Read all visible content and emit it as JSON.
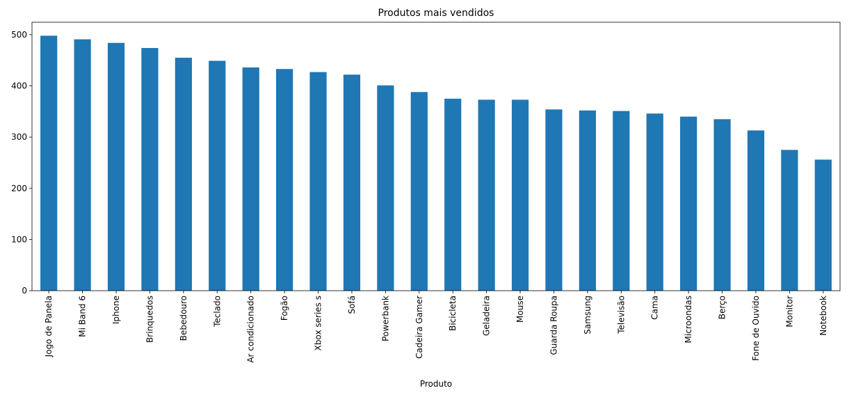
{
  "chart_data": {
    "type": "bar",
    "title": "Produtos mais vendidos",
    "xlabel": "Produto",
    "ylabel": "",
    "categories": [
      "Jogo de Panela",
      "Mi Band 6",
      "Iphone",
      "Brinquedos",
      "Bebedouro",
      "Teclado",
      "Ar condicionado",
      "Fogão",
      "Xbox series s",
      "Sofá",
      "Powerbank",
      "Cadeira Gamer",
      "Bicicleta",
      "Geladeira",
      "Mouse",
      "Guarda Roupa",
      "Samsung",
      "Televisão",
      "Cama",
      "Microondas",
      "Berço",
      "Fone de Ouvido",
      "Monitor",
      "Notebook"
    ],
    "values": [
      498,
      491,
      484,
      474,
      455,
      449,
      436,
      433,
      427,
      422,
      401,
      388,
      375,
      373,
      373,
      354,
      352,
      351,
      346,
      340,
      335,
      313,
      275,
      256
    ],
    "ylim": [
      0,
      524.3
    ],
    "yticks": [
      0,
      100,
      200,
      300,
      400,
      500
    ],
    "bar_color": "#1f77b4",
    "grid": false,
    "legend": "none"
  }
}
